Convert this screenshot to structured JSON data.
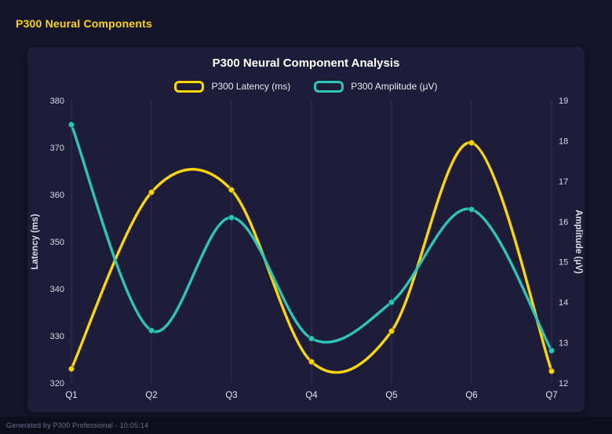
{
  "page": {
    "title": "P300 Neural Components",
    "footer": "Generated by P300 Professional - 10:05:14"
  },
  "colors": {
    "background": "#14142a",
    "panel": "#1d1d3a",
    "accent_yellow": "#ffd700",
    "accent_teal": "#2cc5b8",
    "tick_label": "#d8d8e6",
    "grid": "rgba(255,255,255,0.10)"
  },
  "chart_data": {
    "type": "line",
    "title": "P300 Neural Component Analysis",
    "categories": [
      "Q1",
      "Q2",
      "Q3",
      "Q4",
      "Q5",
      "Q6",
      "Q7"
    ],
    "series": [
      {
        "name": "P300 Latency (ms)",
        "color": "#ffd700",
        "axis": "left",
        "values": [
          323,
          360.5,
          361,
          324.5,
          331,
          371,
          322.5
        ]
      },
      {
        "name": "P300 Amplitude (μV)",
        "color": "#2cc5b8",
        "axis": "right",
        "values": [
          18.4,
          13.3,
          16.1,
          13.1,
          14,
          16.3,
          12.8
        ]
      }
    ],
    "left_axis": {
      "label": "Latency (ms)",
      "min": 320,
      "max": 380,
      "step": 10
    },
    "right_axis": {
      "label": "Amplitude (μV)",
      "min": 12,
      "max": 19,
      "step": 1
    },
    "grid": "vertical",
    "legend_position": "top",
    "curve": "smooth"
  }
}
